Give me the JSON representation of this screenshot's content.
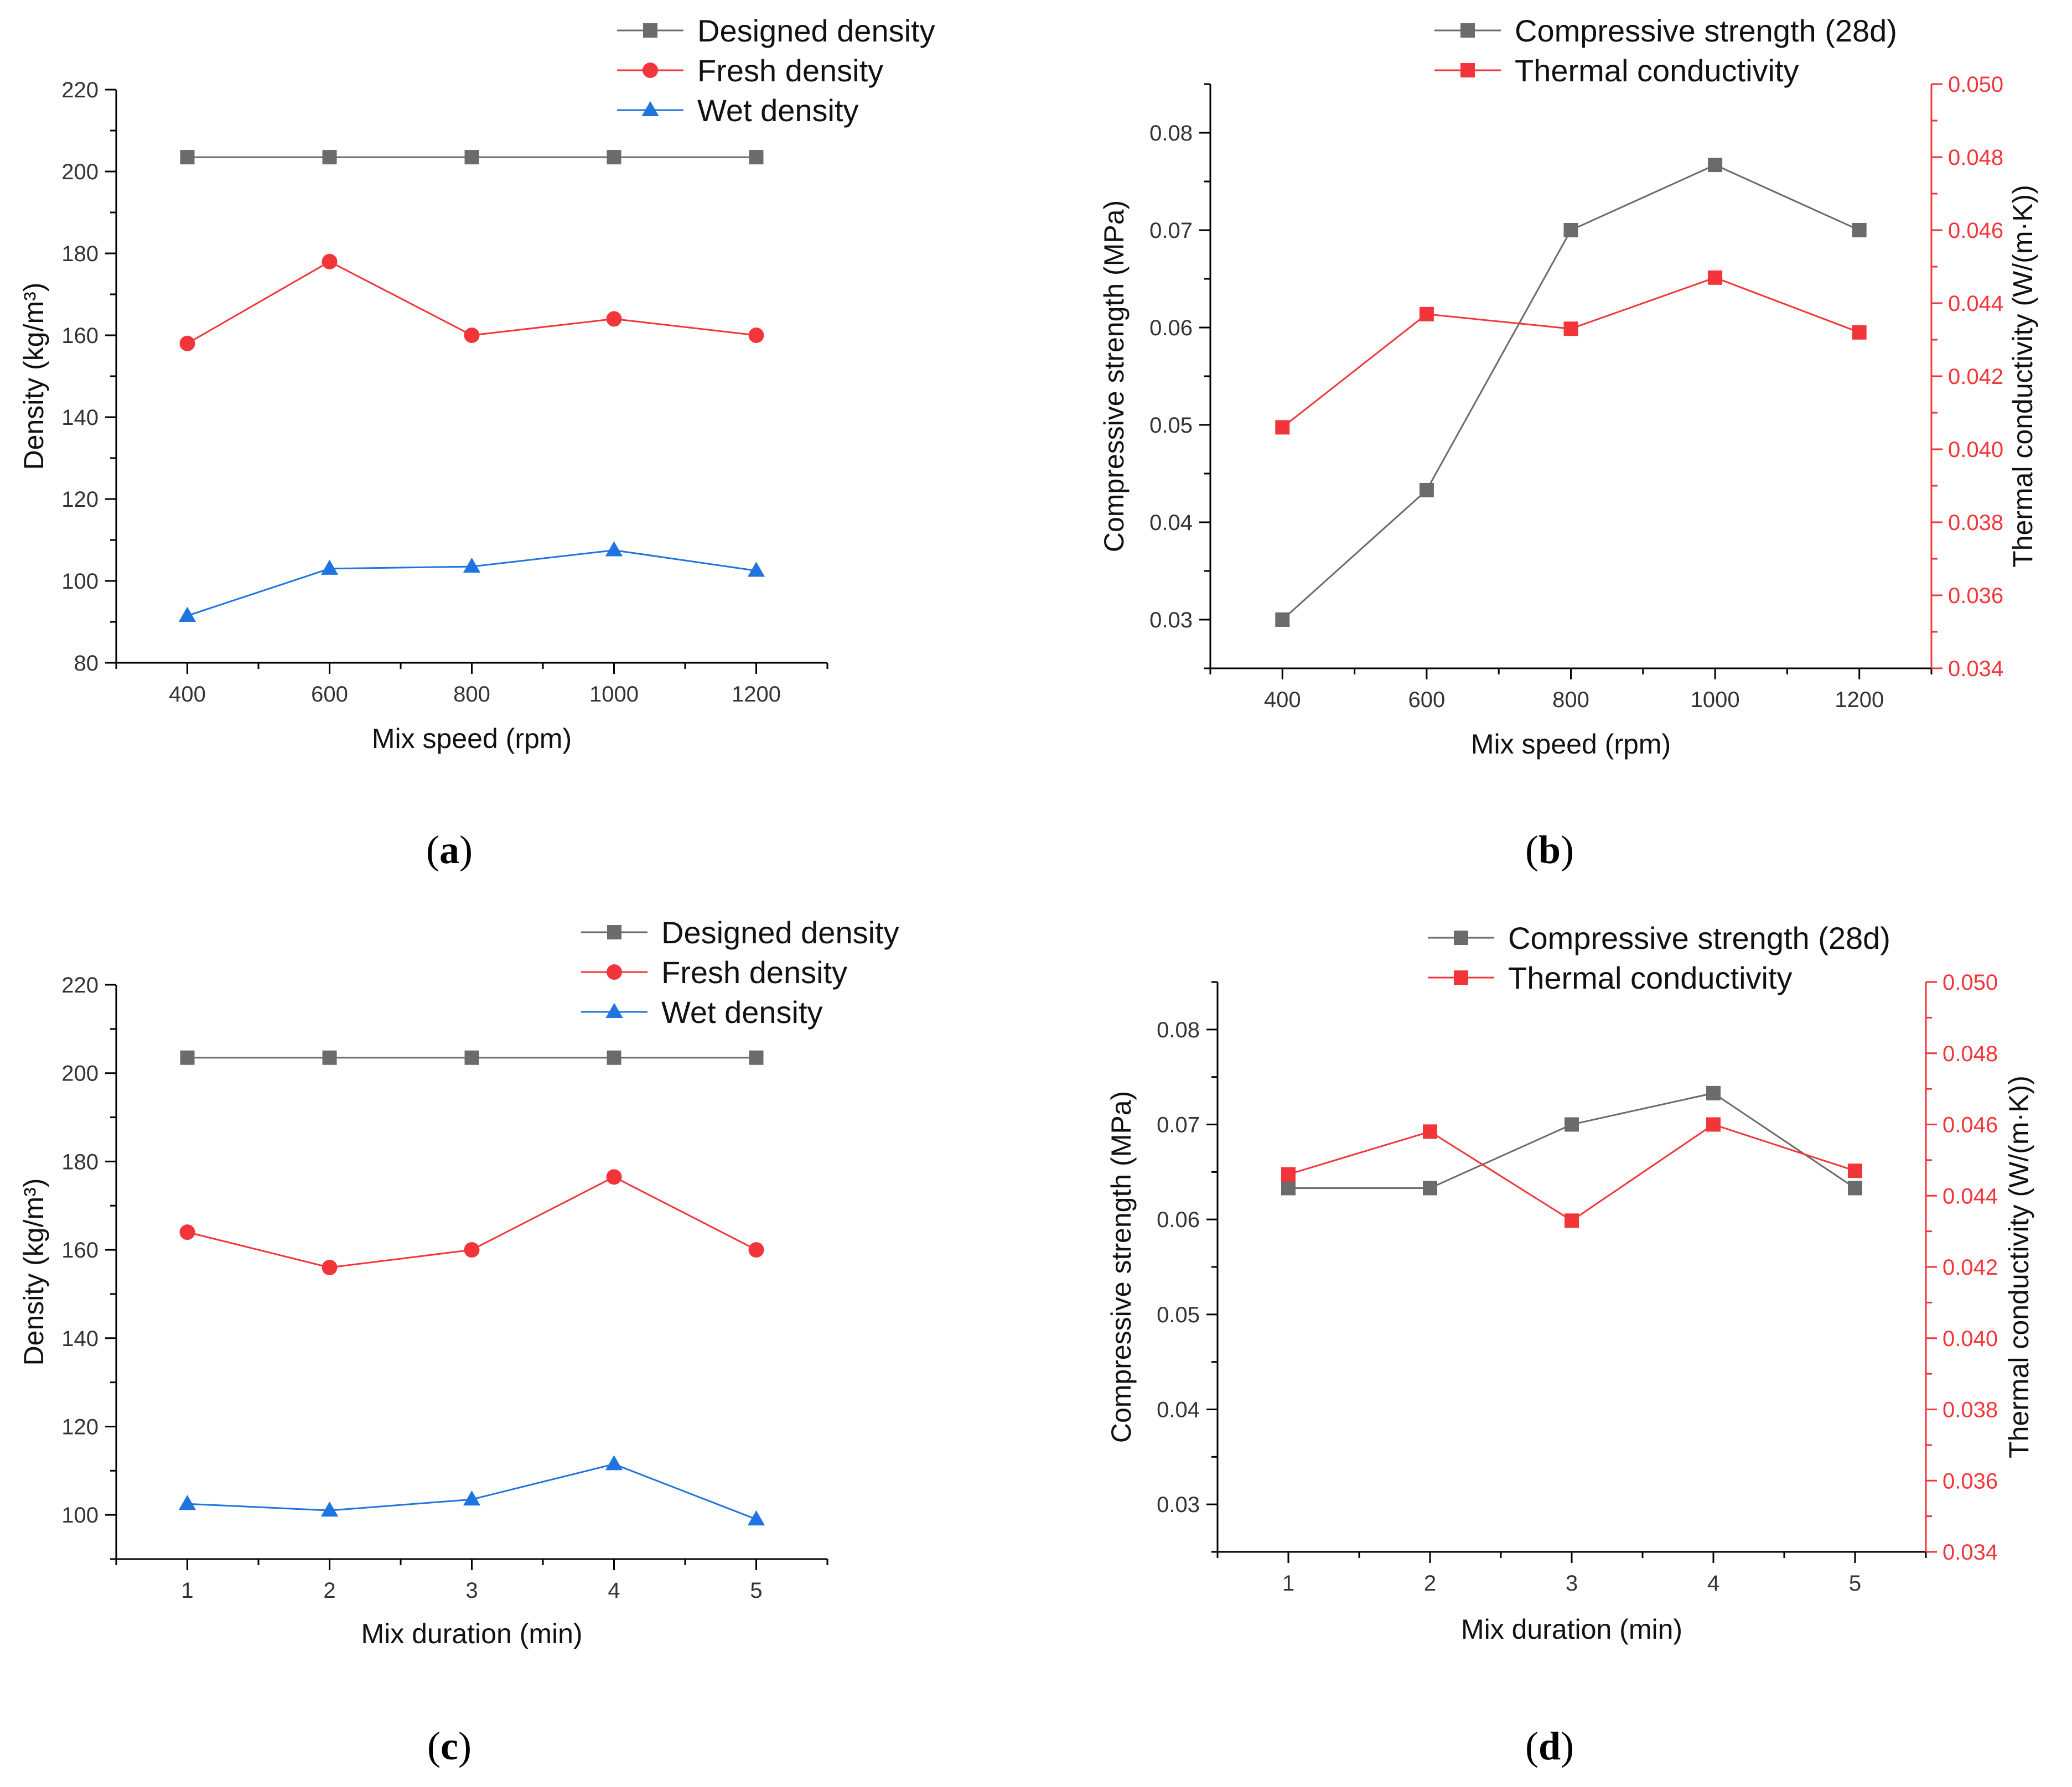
{
  "colors": {
    "designed": "#6b6b6b",
    "fresh": "#f2353a",
    "wet": "#1f74e0",
    "compressive": "#6b6b6b",
    "thermal": "#f2353a",
    "axis": "#000000",
    "right_axis": "#f2353a"
  },
  "chart_data": [
    {
      "id": "a",
      "type": "line",
      "caption_letter": "a",
      "xlabel": "Mix speed (rpm)",
      "ylabel": "Density (kg/m³)",
      "x": [
        400,
        600,
        800,
        1000,
        1200
      ],
      "xticks": [
        400,
        600,
        800,
        1000,
        1200
      ],
      "xlim": [
        300,
        1300
      ],
      "ylim": [
        80,
        220
      ],
      "yticks": [
        80,
        100,
        120,
        140,
        160,
        180,
        200,
        220
      ],
      "series": [
        {
          "name": "Designed density",
          "marker": "square",
          "color_key": "designed",
          "values": [
            203.5,
            203.5,
            203.5,
            203.5,
            203.5
          ]
        },
        {
          "name": "Fresh density",
          "marker": "circle",
          "color_key": "fresh",
          "values": [
            158,
            178,
            160,
            164,
            160
          ]
        },
        {
          "name": "Wet density",
          "marker": "triangle",
          "color_key": "wet",
          "values": [
            91.5,
            103,
            103.5,
            107.5,
            102.5
          ]
        }
      ]
    },
    {
      "id": "b",
      "type": "line",
      "caption_letter": "b",
      "xlabel": "Mix speed (rpm)",
      "ylabel": "Compressive strength (MPa)",
      "ylabel_right": "Thermal conductivity (W/(m·K))",
      "x": [
        400,
        600,
        800,
        1000,
        1200
      ],
      "xticks": [
        400,
        600,
        800,
        1000,
        1200
      ],
      "xlim": [
        300,
        1300
      ],
      "ylim": [
        0.025,
        0.085
      ],
      "yticks": [
        "0.03",
        "0.04",
        "0.05",
        "0.06",
        "0.07",
        "0.08"
      ],
      "ylim_right": [
        0.034,
        0.05
      ],
      "yticks_right": [
        "0.034",
        "0.036",
        "0.038",
        "0.040",
        "0.042",
        "0.044",
        "0.046",
        "0.048",
        "0.050"
      ],
      "series": [
        {
          "name": "Compressive strength (28d)",
          "marker": "square",
          "color_key": "compressive",
          "axis": "left",
          "values": [
            0.03,
            0.0433,
            0.07,
            0.0767,
            0.07
          ]
        },
        {
          "name": "Thermal conductivity",
          "marker": "square",
          "color_key": "thermal",
          "axis": "right",
          "values": [
            0.0406,
            0.0437,
            0.0433,
            0.0447,
            0.0432
          ]
        }
      ]
    },
    {
      "id": "c",
      "type": "line",
      "caption_letter": "c",
      "xlabel": "Mix duration (min)",
      "ylabel": "Density (kg/m³)",
      "x": [
        1,
        2,
        3,
        4,
        5
      ],
      "xticks": [
        1,
        2,
        3,
        4,
        5
      ],
      "xlim": [
        0.5,
        5.5
      ],
      "ylim": [
        90,
        220
      ],
      "yticks": [
        100,
        120,
        140,
        160,
        180,
        200,
        220
      ],
      "series": [
        {
          "name": "Designed density",
          "marker": "square",
          "color_key": "designed",
          "values": [
            203.5,
            203.5,
            203.5,
            203.5,
            203.5
          ]
        },
        {
          "name": "Fresh density",
          "marker": "circle",
          "color_key": "fresh",
          "values": [
            164,
            156,
            160,
            176.5,
            160
          ]
        },
        {
          "name": "Wet density",
          "marker": "triangle",
          "color_key": "wet",
          "values": [
            102.5,
            101,
            103.5,
            111.5,
            99
          ]
        }
      ]
    },
    {
      "id": "d",
      "type": "line",
      "caption_letter": "d",
      "xlabel": "Mix duration (min)",
      "ylabel": "Compressive strength (MPa)",
      "ylabel_right": "Thermal conductivity (W/(m·K))",
      "x": [
        1,
        2,
        3,
        4,
        5
      ],
      "xticks": [
        1,
        2,
        3,
        4,
        5
      ],
      "xlim": [
        0.5,
        5.5
      ],
      "ylim": [
        0.025,
        0.085
      ],
      "yticks": [
        "0.03",
        "0.04",
        "0.05",
        "0.06",
        "0.07",
        "0.08"
      ],
      "ylim_right": [
        0.034,
        0.05
      ],
      "yticks_right": [
        "0.034",
        "0.036",
        "0.038",
        "0.040",
        "0.042",
        "0.044",
        "0.046",
        "0.048",
        "0.050"
      ],
      "series": [
        {
          "name": "Compressive strength (28d)",
          "marker": "square",
          "color_key": "compressive",
          "axis": "left",
          "values": [
            0.0633,
            0.0633,
            0.07,
            0.0733,
            0.0633
          ]
        },
        {
          "name": "Thermal conductivity",
          "marker": "square",
          "color_key": "thermal",
          "axis": "right",
          "values": [
            0.0446,
            0.0458,
            0.0433,
            0.046,
            0.0447
          ]
        }
      ]
    }
  ]
}
